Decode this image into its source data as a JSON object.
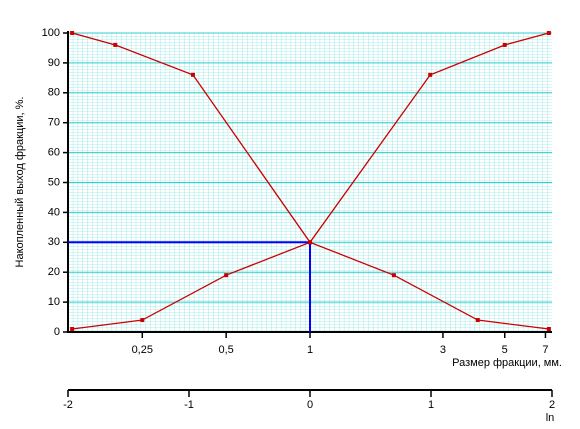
{
  "chart_data": {
    "type": "line",
    "ylabel": "Накопленный выход фракции, %.",
    "xlabel": "Размер фракции, мм.",
    "x2label": "ln",
    "xscale": "log",
    "xlim": [
      0.1353,
      7.389
    ],
    "xticks": [
      {
        "value": 0.25,
        "label": "0,25"
      },
      {
        "value": 0.5,
        "label": "0,5"
      },
      1,
      3,
      5,
      7
    ],
    "x2lim": [
      -2,
      2
    ],
    "x2ticks": [
      -2,
      -1,
      0,
      1,
      2
    ],
    "ylim": [
      0,
      100
    ],
    "yticks": [
      0,
      10,
      20,
      30,
      40,
      50,
      60,
      70,
      80,
      90,
      100
    ],
    "grid": true,
    "grid_color": "#33cccc",
    "series": [
      {
        "color": "#cc0000",
        "x": [
          0.14,
          0.2,
          0.38,
          1,
          2,
          4,
          7.2
        ],
        "values": [
          100,
          96,
          86,
          30,
          19,
          4,
          1
        ]
      },
      {
        "color": "#cc0000",
        "x": [
          0.14,
          0.25,
          0.5,
          1,
          2.7,
          5,
          7.2
        ],
        "values": [
          1,
          4,
          19,
          30,
          86,
          96,
          100
        ]
      }
    ],
    "guides": [
      {
        "x": 1,
        "y": 30
      }
    ],
    "guide_color": "#0000ff"
  }
}
